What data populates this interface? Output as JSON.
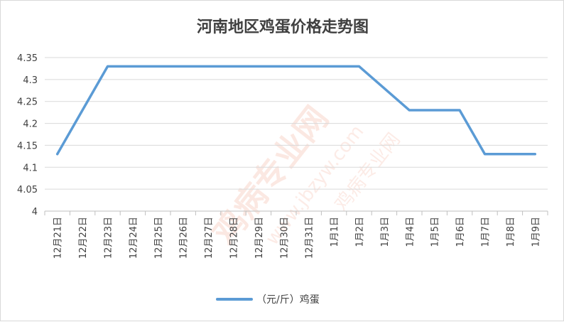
{
  "chart_data": {
    "type": "line",
    "title": "河南地区鸡蛋价格走势图",
    "categories": [
      "12月21日",
      "12月22日",
      "12月23日",
      "12月24日",
      "12月25日",
      "12月26日",
      "12月27日",
      "12月28日",
      "12月29日",
      "12月30日",
      "12月31日",
      "1月1日",
      "1月2日",
      "1月3日",
      "1月4日",
      "1月5日",
      "1月6日",
      "1月7日",
      "1月8日",
      "1月9日"
    ],
    "series": [
      {
        "name": "（元/斤）鸡蛋",
        "color": "#5b9bd5",
        "values": [
          4.13,
          4.23,
          4.33,
          4.33,
          4.33,
          4.33,
          4.33,
          4.33,
          4.33,
          4.33,
          4.33,
          4.33,
          4.33,
          4.28,
          4.23,
          4.23,
          4.23,
          4.13,
          4.13,
          4.13
        ]
      }
    ],
    "ylim": [
      4,
      4.35
    ],
    "yticks": [
      "4",
      "4.05",
      "4.1",
      "4.15",
      "4.2",
      "4.25",
      "4.3",
      "4.35"
    ],
    "grid": true,
    "legend_position": "bottom"
  },
  "watermark": {
    "text": "鸡病专业网",
    "url": "www.jbzyw.com",
    "subtext": "鸡病专业网"
  }
}
